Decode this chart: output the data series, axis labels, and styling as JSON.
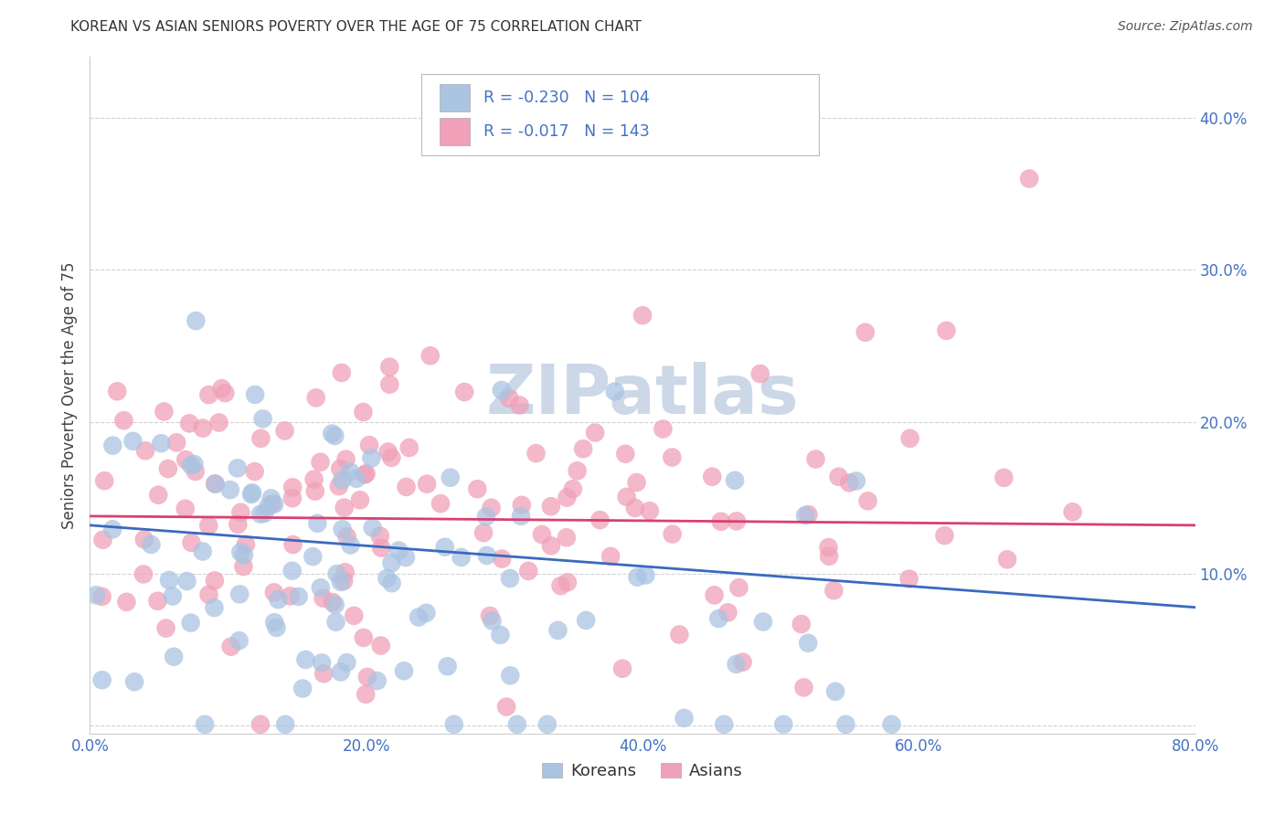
{
  "title": "KOREAN VS ASIAN SENIORS POVERTY OVER THE AGE OF 75 CORRELATION CHART",
  "source": "Source: ZipAtlas.com",
  "xlim": [
    0.0,
    0.8
  ],
  "ylim": [
    -0.005,
    0.44
  ],
  "korean_R": -0.23,
  "korean_N": 104,
  "asian_R": -0.017,
  "asian_N": 143,
  "korean_color": "#aac4e2",
  "korean_line_color": "#3a6abf",
  "asian_color": "#f0a0b8",
  "asian_line_color": "#d94070",
  "legend_text_color": "#4472c4",
  "background_color": "#ffffff",
  "grid_color": "#cccccc",
  "watermark_color": "#ccd8e8",
  "ylabel": "Seniors Poverty Over the Age of 75",
  "legend_korean": "Koreans",
  "legend_asian": "Asians",
  "korean_line_y0": 0.132,
  "korean_line_y1": 0.078,
  "asian_line_y0": 0.138,
  "asian_line_y1": 0.132
}
